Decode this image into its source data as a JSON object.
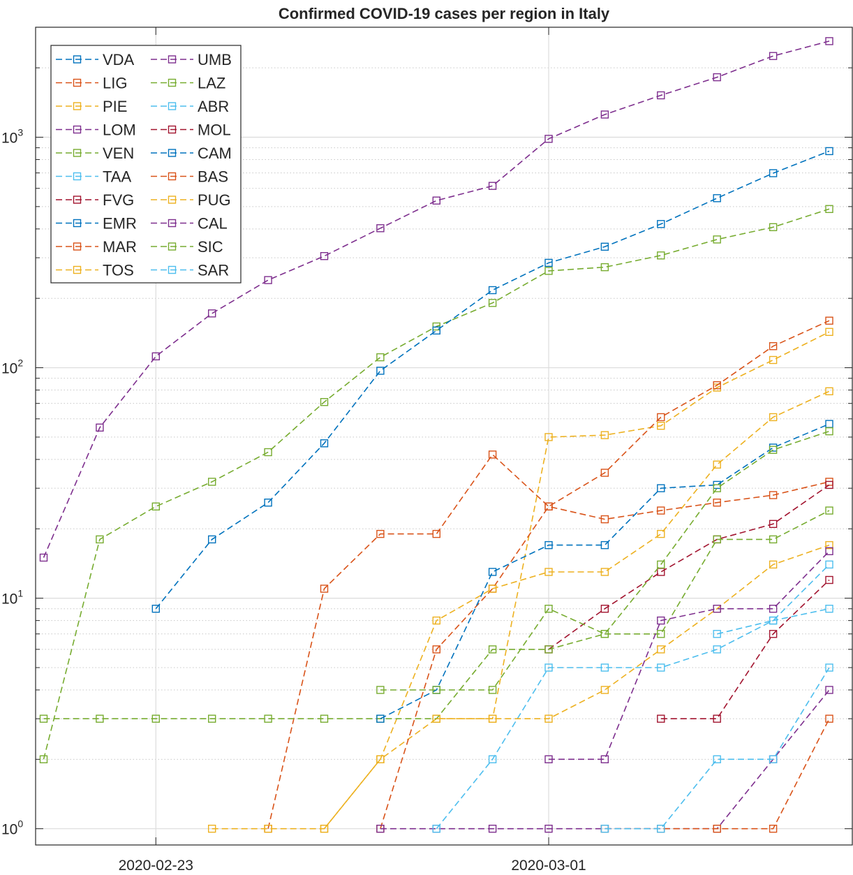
{
  "chart_data": {
    "type": "line",
    "title": "Confirmed COVID-19 cases per region in Italy",
    "xlabel": "",
    "ylabel": "",
    "y_scale": "log",
    "ylim": [
      0.85,
      3000
    ],
    "xlim": [
      "2020-02-21",
      "2020-03-06"
    ],
    "x": [
      "2020-02-21",
      "2020-02-22",
      "2020-02-23",
      "2020-02-24",
      "2020-02-25",
      "2020-02-26",
      "2020-02-27",
      "2020-02-28",
      "2020-02-29",
      "2020-03-01",
      "2020-03-02",
      "2020-03-03",
      "2020-03-04",
      "2020-03-05",
      "2020-03-06"
    ],
    "x_ticks": [
      "2020-02-23",
      "2020-03-01"
    ],
    "y_ticks": [
      1,
      10,
      100,
      1000
    ],
    "y_tick_labels": [
      {
        "base": "10",
        "exp": "0"
      },
      {
        "base": "10",
        "exp": "1"
      },
      {
        "base": "10",
        "exp": "2"
      },
      {
        "base": "10",
        "exp": "3"
      }
    ],
    "grid": true,
    "legend_position": "top-left",
    "legend_columns": 2,
    "line_style": "dashed",
    "marker": "square",
    "series": [
      {
        "name": "VDA",
        "color": "#0072BD",
        "values": [
          null,
          null,
          null,
          null,
          null,
          null,
          null,
          null,
          null,
          null,
          null,
          null,
          null,
          null,
          null
        ]
      },
      {
        "name": "LIG",
        "color": "#D95319",
        "values": [
          null,
          null,
          null,
          null,
          1,
          11,
          19,
          19,
          42,
          25,
          22,
          24,
          26,
          28,
          32
        ]
      },
      {
        "name": "PIE",
        "color": "#EDB120",
        "values": [
          null,
          null,
          null,
          1,
          1,
          1,
          2,
          3,
          3,
          50,
          51,
          56,
          82,
          108,
          143
        ]
      },
      {
        "name": "LOM",
        "color": "#7E2F8E",
        "values": [
          15,
          55,
          112,
          172,
          240,
          305,
          403,
          531,
          615,
          984,
          1254,
          1520,
          1820,
          2251,
          2612
        ]
      },
      {
        "name": "VEN",
        "color": "#77AC30",
        "values": [
          2,
          18,
          25,
          32,
          43,
          71,
          111,
          151,
          191,
          263,
          273,
          307,
          360,
          407,
          488
        ]
      },
      {
        "name": "TAA",
        "color": "#4DBEEE",
        "values": [
          null,
          null,
          null,
          null,
          null,
          null,
          null,
          null,
          null,
          null,
          null,
          null,
          null,
          null,
          null
        ]
      },
      {
        "name": "FVG",
        "color": "#A2142F",
        "values": [
          null,
          null,
          null,
          null,
          null,
          null,
          null,
          null,
          null,
          6,
          9,
          13,
          18,
          21,
          31
        ]
      },
      {
        "name": "EMR",
        "color": "#0072BD",
        "values": [
          null,
          null,
          9,
          18,
          26,
          47,
          97,
          145,
          217,
          285,
          335,
          420,
          544,
          698,
          870
        ]
      },
      {
        "name": "MAR",
        "color": "#D95319",
        "values": [
          null,
          null,
          null,
          null,
          null,
          null,
          1,
          6,
          11,
          25,
          35,
          61,
          84,
          124,
          160
        ]
      },
      {
        "name": "TOS",
        "color": "#EDB120",
        "values": [
          null,
          null,
          null,
          null,
          null,
          1,
          2,
          8,
          11,
          13,
          13,
          19,
          38,
          61,
          79
        ]
      },
      {
        "name": "UMB",
        "color": "#7E2F8E",
        "values": [
          null,
          null,
          null,
          null,
          null,
          null,
          1,
          1,
          1,
          1,
          1,
          1,
          1,
          2,
          4
        ]
      },
      {
        "name": "LAZ",
        "color": "#77AC30",
        "values": [
          3,
          3,
          3,
          3,
          3,
          3,
          3,
          3,
          6,
          6,
          7,
          7,
          18,
          18,
          24
        ]
      },
      {
        "name": "ABR",
        "color": "#4DBEEE",
        "values": [
          null,
          null,
          null,
          null,
          null,
          null,
          null,
          1,
          2,
          5,
          5,
          5,
          6,
          8,
          9
        ]
      },
      {
        "name": "MOL",
        "color": "#A2142F",
        "values": [
          null,
          null,
          null,
          null,
          null,
          null,
          null,
          null,
          null,
          null,
          null,
          3,
          3,
          7,
          12
        ]
      },
      {
        "name": "CAM",
        "color": "#0072BD",
        "values": [
          null,
          null,
          null,
          null,
          null,
          null,
          3,
          4,
          13,
          17,
          17,
          30,
          31,
          45,
          57
        ]
      },
      {
        "name": "BAS",
        "color": "#D95319",
        "values": [
          null,
          null,
          null,
          null,
          null,
          null,
          null,
          null,
          null,
          null,
          1,
          1,
          1,
          1,
          3
        ]
      },
      {
        "name": "PUG",
        "color": "#EDB120",
        "values": [
          null,
          null,
          null,
          null,
          null,
          null,
          null,
          3,
          3,
          3,
          4,
          6,
          9,
          14,
          17
        ]
      },
      {
        "name": "CAL",
        "color": "#7E2F8E",
        "values": [
          null,
          null,
          null,
          null,
          null,
          null,
          null,
          null,
          null,
          2,
          2,
          8,
          9,
          9,
          16
        ]
      },
      {
        "name": "SIC",
        "color": "#77AC30",
        "values": [
          null,
          null,
          null,
          null,
          null,
          null,
          4,
          4,
          4,
          9,
          7,
          14,
          30,
          44,
          53
        ]
      },
      {
        "name": "SAR",
        "color": "#4DBEEE",
        "values": [
          null,
          null,
          null,
          null,
          null,
          null,
          null,
          null,
          null,
          null,
          1,
          1,
          2,
          2,
          5
        ]
      }
    ]
  },
  "extra_series": [
    {
      "name": "SAR",
      "color": "#4DBEEE",
      "values": [
        null,
        null,
        null,
        null,
        null,
        null,
        null,
        null,
        null,
        null,
        null,
        null,
        7,
        8,
        14
      ]
    }
  ]
}
